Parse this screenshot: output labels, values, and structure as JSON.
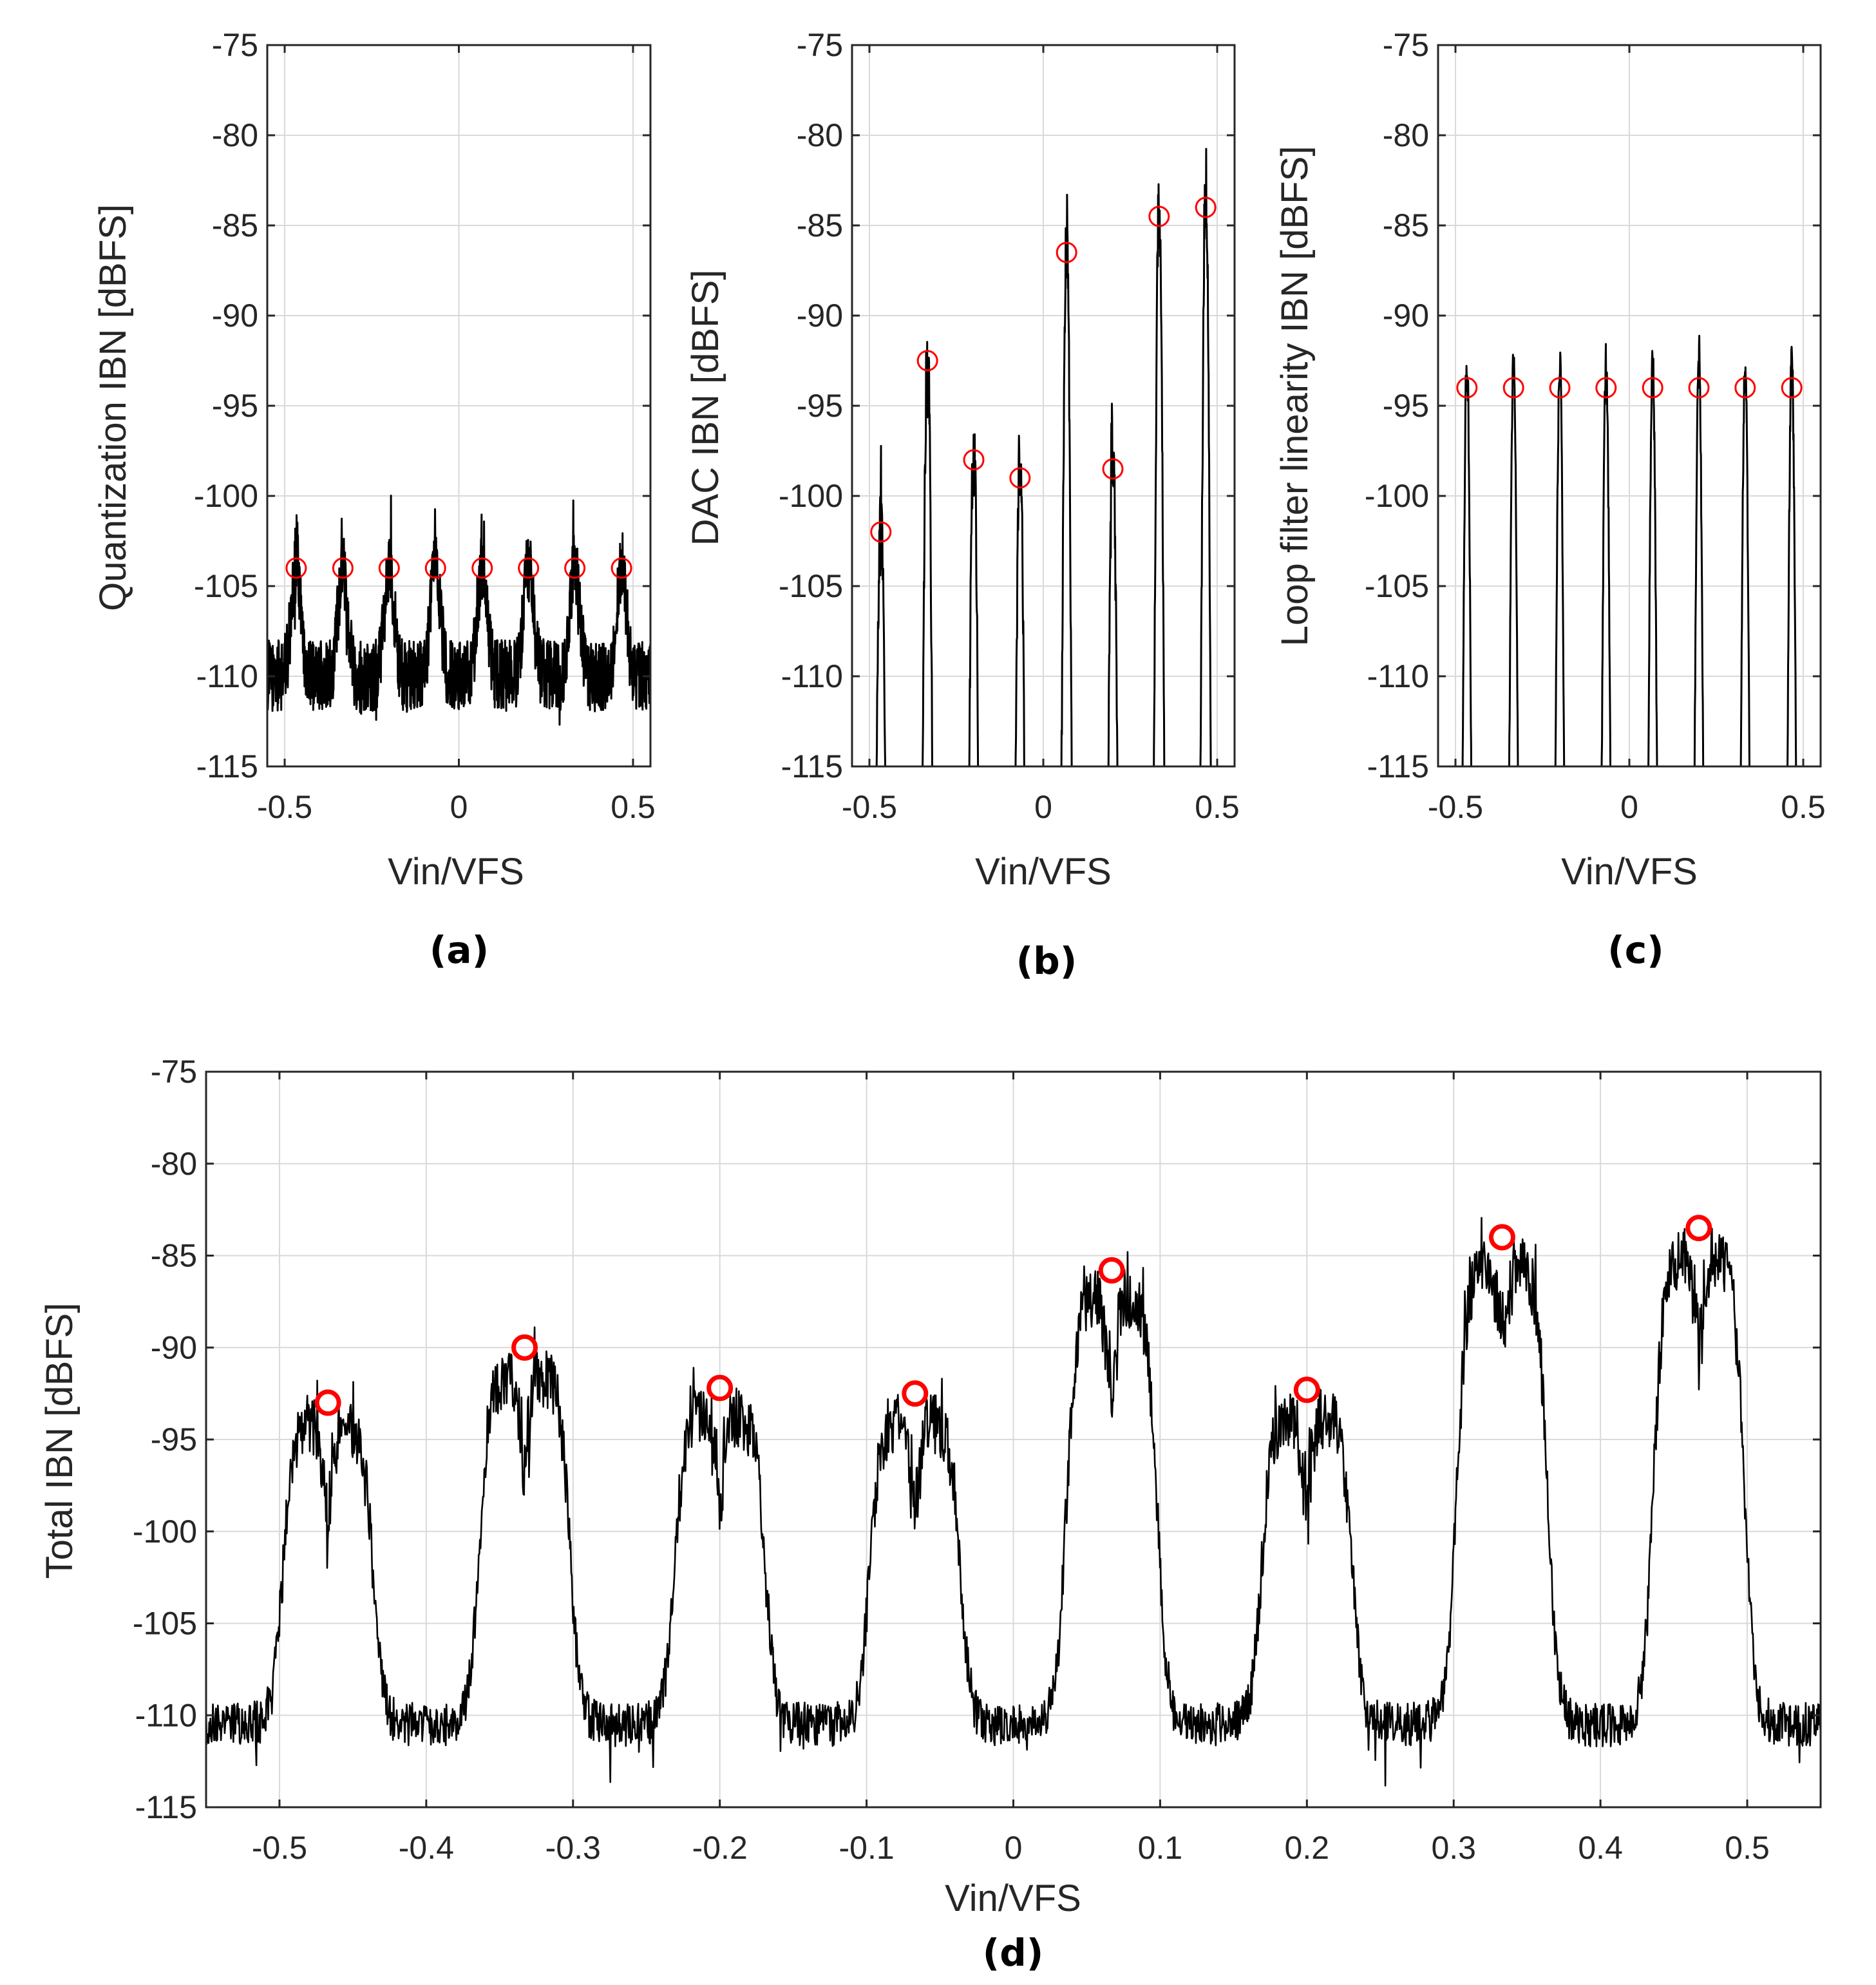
{
  "figure": {
    "panels": [
      {
        "id": "a",
        "caption": "(a)"
      },
      {
        "id": "b",
        "caption": "(b)"
      },
      {
        "id": "c",
        "caption": "(c)"
      },
      {
        "id": "d",
        "caption": "(d)"
      }
    ]
  },
  "colors": {
    "trace": "#000000",
    "marker": "#ff0000",
    "grid": "#d9d9d9",
    "axis": "#262626"
  },
  "chart_data": [
    {
      "type": "line",
      "panel": "(a)",
      "title": "",
      "xlabel": "Vin/VFS",
      "ylabel": "Quantization IBN [dBFS]",
      "xlim": [
        -0.55,
        0.55
      ],
      "ylim": [
        -115,
        -75
      ],
      "xticks": [
        -0.5,
        0,
        0.5
      ],
      "xtick_labels": [
        "-0.5",
        "0",
        "0.5"
      ],
      "yticks": [
        -75,
        -80,
        -85,
        -90,
        -95,
        -100,
        -105,
        -110,
        -115
      ],
      "ytick_labels": [
        "-75",
        "-80",
        "-85",
        "-90",
        "-95",
        "-100",
        "-105",
        "-110",
        "-115"
      ],
      "grid": true,
      "trace": {
        "style": "noise_floor",
        "baseline": -110,
        "noise": 2.0,
        "bump_height": 6,
        "peak_spike": 2.5,
        "notch": 0
      },
      "peaks": [
        {
          "x": -0.467,
          "y": -104
        },
        {
          "x": -0.333,
          "y": -104
        },
        {
          "x": -0.2,
          "y": -104
        },
        {
          "x": -0.067,
          "y": -104
        },
        {
          "x": 0.067,
          "y": -104
        },
        {
          "x": 0.2,
          "y": -104
        },
        {
          "x": 0.333,
          "y": -104
        },
        {
          "x": 0.467,
          "y": -104
        }
      ]
    },
    {
      "type": "line",
      "panel": "(b)",
      "title": "",
      "xlabel": "Vin/VFS",
      "ylabel": "DAC IBN [dBFS]",
      "xlim": [
        -0.55,
        0.55
      ],
      "ylim": [
        -115,
        -75
      ],
      "xticks": [
        -0.5,
        0,
        0.5
      ],
      "xtick_labels": [
        "-0.5",
        "0",
        "0.5"
      ],
      "yticks": [
        -75,
        -80,
        -85,
        -90,
        -95,
        -100,
        -105,
        -110,
        -115
      ],
      "ytick_labels": [
        "-75",
        "-80",
        "-85",
        "-90",
        "-95",
        "-100",
        "-105",
        "-110",
        "-115"
      ],
      "grid": true,
      "trace": {
        "style": "spikes",
        "baseline": -130,
        "half_width": 0.022,
        "noise": 1.5,
        "peak_spike": 4,
        "notch": 3
      },
      "peaks": [
        {
          "x": -0.467,
          "y": -102
        },
        {
          "x": -0.333,
          "y": -92.5
        },
        {
          "x": -0.2,
          "y": -98
        },
        {
          "x": -0.067,
          "y": -99
        },
        {
          "x": 0.067,
          "y": -86.5
        },
        {
          "x": 0.2,
          "y": -98.5
        },
        {
          "x": 0.333,
          "y": -84.5
        },
        {
          "x": 0.467,
          "y": -84
        }
      ]
    },
    {
      "type": "line",
      "panel": "(c)",
      "title": "",
      "xlabel": "Vin/VFS",
      "ylabel": "Loop filter linearity IBN [dBFS]",
      "xlim": [
        -0.55,
        0.55
      ],
      "ylim": [
        -115,
        -75
      ],
      "xticks": [
        -0.5,
        0,
        0.5
      ],
      "xtick_labels": [
        "-0.5",
        "0",
        "0.5"
      ],
      "yticks": [
        -75,
        -80,
        -85,
        -90,
        -95,
        -100,
        -105,
        -110,
        -115
      ],
      "ytick_labels": [
        "-75",
        "-80",
        "-85",
        "-90",
        "-95",
        "-100",
        "-105",
        "-110",
        "-115"
      ],
      "grid": true,
      "trace": {
        "style": "spikes",
        "baseline": -130,
        "half_width": 0.02,
        "noise": 0.8,
        "peak_spike": 1.5,
        "notch": 1
      },
      "peaks": [
        {
          "x": -0.467,
          "y": -94
        },
        {
          "x": -0.333,
          "y": -94
        },
        {
          "x": -0.2,
          "y": -94
        },
        {
          "x": -0.067,
          "y": -94
        },
        {
          "x": 0.067,
          "y": -94
        },
        {
          "x": 0.2,
          "y": -94
        },
        {
          "x": 0.333,
          "y": -94
        },
        {
          "x": 0.467,
          "y": -94
        }
      ]
    },
    {
      "type": "line",
      "panel": "(d)",
      "title": "",
      "xlabel": "Vin/VFS",
      "ylabel": "Total IBN [dBFS]",
      "xlim": [
        -0.55,
        0.55
      ],
      "ylim": [
        -115,
        -75
      ],
      "xticks": [
        -0.5,
        -0.4,
        -0.3,
        -0.2,
        -0.1,
        0,
        0.1,
        0.2,
        0.3,
        0.4,
        0.5
      ],
      "xtick_labels": [
        "-0.5",
        "-0.4",
        "-0.3",
        "-0.2",
        "-0.1",
        "0",
        "0.1",
        "0.2",
        "0.3",
        "0.4",
        "0.5"
      ],
      "yticks": [
        -75,
        -80,
        -85,
        -90,
        -95,
        -100,
        -105,
        -110,
        -115
      ],
      "ytick_labels": [
        "-75",
        "-80",
        "-85",
        "-90",
        "-95",
        "-100",
        "-105",
        "-110",
        "-115"
      ],
      "grid": true,
      "trace": {
        "style": "plateau",
        "baseline": -110.5,
        "half_width": 0.031,
        "noise": 1.2,
        "peak_spike": 2,
        "notch": 5
      },
      "peaks": [
        {
          "x": -0.467,
          "y": -93
        },
        {
          "x": -0.333,
          "y": -90
        },
        {
          "x": -0.2,
          "y": -92.2
        },
        {
          "x": -0.067,
          "y": -92.5
        },
        {
          "x": 0.067,
          "y": -85.8
        },
        {
          "x": 0.2,
          "y": -92.3
        },
        {
          "x": 0.333,
          "y": -84
        },
        {
          "x": 0.467,
          "y": -83.5
        }
      ]
    }
  ]
}
